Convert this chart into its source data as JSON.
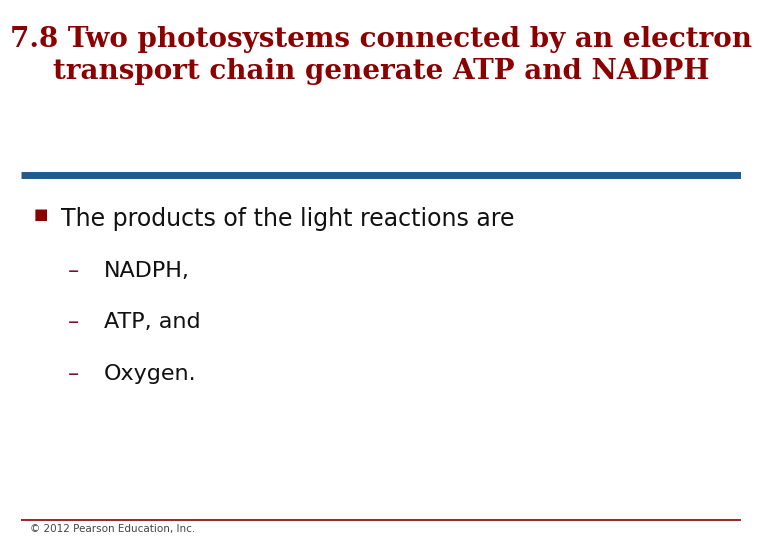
{
  "title_line1": "7.8 Two photosystems connected by an electron",
  "title_line2": "transport chain generate ATP and NADPH",
  "title_color": "#8B0000",
  "title_fontsize": 20,
  "separator_color": "#1F5C8B",
  "separator_linewidth": 5,
  "bullet_color": "#8B0000",
  "bullet_text": "The products of the light reactions are",
  "bullet_fontsize": 17,
  "sub_bullets": [
    "NADPH,",
    "ATP, and",
    "Oxygen."
  ],
  "sub_bullet_fontsize": 16,
  "sub_bullet_color": "#111111",
  "dash_color": "#7B1030",
  "footer_text": "© 2012 Pearson Education, Inc.",
  "footer_fontsize": 7.5,
  "footer_color": "#444444",
  "bg_color": "#FFFFFF",
  "bottom_line_color": "#8B0000"
}
